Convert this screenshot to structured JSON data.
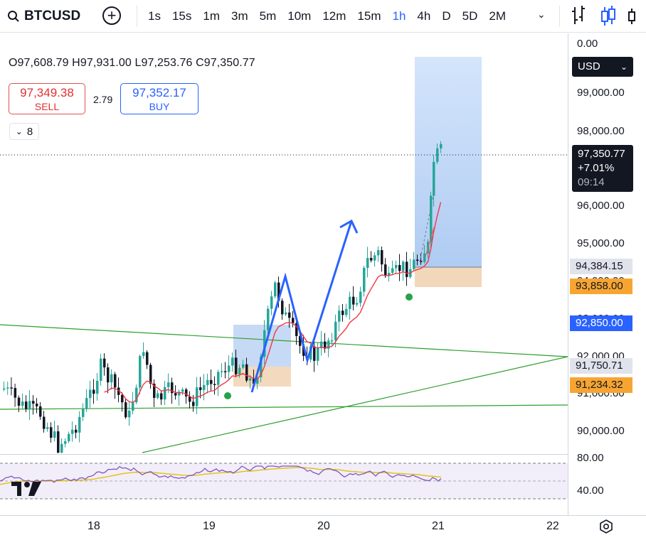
{
  "toolbar": {
    "symbol": "BTCUSD",
    "intervals": [
      "1s",
      "15s",
      "1m",
      "3m",
      "5m",
      "10m",
      "12m",
      "15m",
      "1h",
      "4h",
      "D",
      "5D",
      "2M"
    ],
    "active_interval": "1h"
  },
  "legend": {
    "ohlc": "O97,608.79 H97,931.00 L97,253.76 C97,350.77",
    "sell_price": "97,349.38",
    "sell_label": "SELL",
    "spread": "2.79",
    "buy_price": "97,352.17",
    "buy_label": "BUY",
    "indicator_count": "8"
  },
  "price_axis": {
    "top_label": "0.00",
    "currency": "USD",
    "labels": [
      "99,000.00",
      "98,000.00",
      "96,000.00",
      "95,000.00",
      "94,000.00",
      "93,000.00",
      "92,000.00",
      "91,000.00",
      "90,000.00"
    ],
    "last_price": "97,350.77",
    "last_change": "+7.01%",
    "countdown": "09:14",
    "tags": [
      {
        "text": "94,384.15",
        "bg": "#e0e3eb",
        "fg": "#131722"
      },
      {
        "text": "93,858.00",
        "bg": "#f7a531",
        "fg": "#131722"
      },
      {
        "text": "92,850.00",
        "bg": "#2962ff",
        "fg": "#ffffff"
      },
      {
        "text": "91,750.71",
        "bg": "#e0e3eb",
        "fg": "#131722"
      },
      {
        "text": "91,234.32",
        "bg": "#f7a531",
        "fg": "#131722"
      }
    ]
  },
  "rsi_axis": {
    "labels": [
      "80.00",
      "40.00"
    ]
  },
  "time_axis": {
    "labels": [
      "18",
      "19",
      "20",
      "21",
      "22"
    ]
  },
  "colors": {
    "up": "#26a69a",
    "down": "#131722",
    "accent": "#2962ff",
    "ema": "#f23645",
    "trend": "#2e9e2e",
    "rsi": "#7e57c2",
    "rsi_ma": "#e3c31a"
  },
  "icons": {
    "search": "search-icon",
    "add": "plus-circle-icon",
    "bars": "bar-chart-icon",
    "candles": "candlestick-icon",
    "settings": "gear-icon",
    "logo": "tradingview-logo"
  }
}
